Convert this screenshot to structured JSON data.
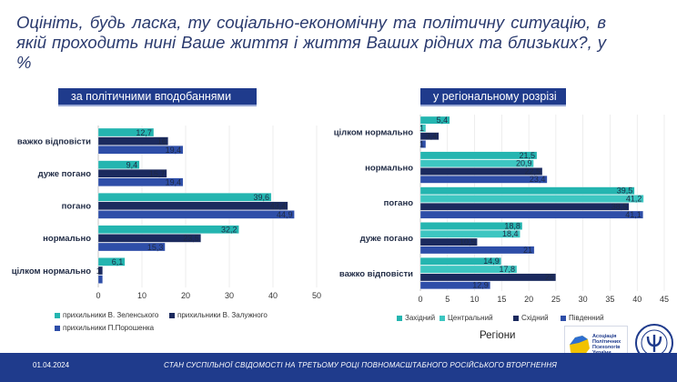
{
  "title": "Оцініть, будь ласка, ту соціально-економічну та політичну ситуацію, в якій проходить нині Ваше життя і життя Ваших рідних та близьких?, у %",
  "left_panel": {
    "heading": "за політичними вподобаннями"
  },
  "right_panel": {
    "heading": "у регіональному розрізі",
    "axis_title": "Регіони"
  },
  "footer": {
    "date": "01.04.2024",
    "caption": "СТАН СУСПІЛЬНОЇ СВІДОМОСТІ НА ТРЕТЬОМУ РОЦІ ПОВНОМАСШТАБНОГО РОСІЙСЬКОГО ВТОРГНЕННЯ"
  },
  "logo": {
    "text_lines": [
      "Асоціація",
      "Політичних",
      "Психологів",
      "України"
    ]
  },
  "chart_data": [
    {
      "type": "bar",
      "orientation": "horizontal",
      "title": "за політичними вподобаннями",
      "categories": [
        "важко відповісти",
        "дуже погано",
        "погано",
        "нормально",
        "цілком нормально"
      ],
      "series": [
        {
          "name": "прихильники В. Зеленського",
          "color": "#24b5b0",
          "values": [
            12.7,
            9.4,
            39.6,
            32.2,
            6.1
          ],
          "labels": [
            "12,7",
            "9,4",
            "39,6",
            "32,2",
            "6,1"
          ]
        },
        {
          "name": "прихильники В. Залужного",
          "color": "#1b2a5e",
          "values": [
            16,
            15.7,
            43.4,
            23.5,
            1
          ],
          "labels": [
            "16",
            "15,7",
            "43,4",
            "23,5",
            "1"
          ]
        },
        {
          "name": "прихильники П.Порошенка",
          "color": "#2e4ea8",
          "values": [
            19.4,
            19.4,
            44.9,
            15.3,
            1
          ],
          "labels": [
            "19,4",
            "19,4",
            "44,9",
            "15,3",
            ""
          ]
        }
      ],
      "xlim": [
        0,
        50
      ],
      "xticks": [
        0,
        10,
        20,
        30,
        40,
        50
      ],
      "legend": "bottom"
    },
    {
      "type": "bar",
      "orientation": "horizontal",
      "title": "у регіональному розрізі",
      "xlabel": "Регіони",
      "categories": [
        "цілком нормально",
        "нормально",
        "погано",
        "дуже погано",
        "важко відповісти"
      ],
      "series": [
        {
          "name": "Західний",
          "color": "#24b5b0",
          "values": [
            5.4,
            21.5,
            39.5,
            18.8,
            14.9
          ],
          "labels": [
            "5,4",
            "21,5",
            "39,5",
            "18,8",
            "14,9"
          ]
        },
        {
          "name": "Центральний",
          "color": "#3dc6c1",
          "values": [
            1,
            20.9,
            41.2,
            18.4,
            17.8
          ],
          "labels": [
            "1",
            "20,9",
            "41,2",
            "18,4",
            "17,8"
          ]
        },
        {
          "name": "Східний",
          "color": "#1b2a5e",
          "values": [
            3.4,
            22.5,
            38.5,
            10.5,
            25
          ],
          "labels": [
            "3,4",
            "22,5",
            "38,5",
            "10,5",
            "25"
          ]
        },
        {
          "name": "Південний",
          "color": "#2e4ea8",
          "values": [
            1,
            23.4,
            41.1,
            21,
            12.9
          ],
          "labels": [
            "1",
            "23,4",
            "41,1",
            "21",
            "12,9"
          ]
        }
      ],
      "xlim": [
        0,
        45
      ],
      "xticks": [
        0,
        5,
        10,
        15,
        20,
        25,
        30,
        35,
        40,
        45
      ],
      "legend": "bottom"
    }
  ]
}
